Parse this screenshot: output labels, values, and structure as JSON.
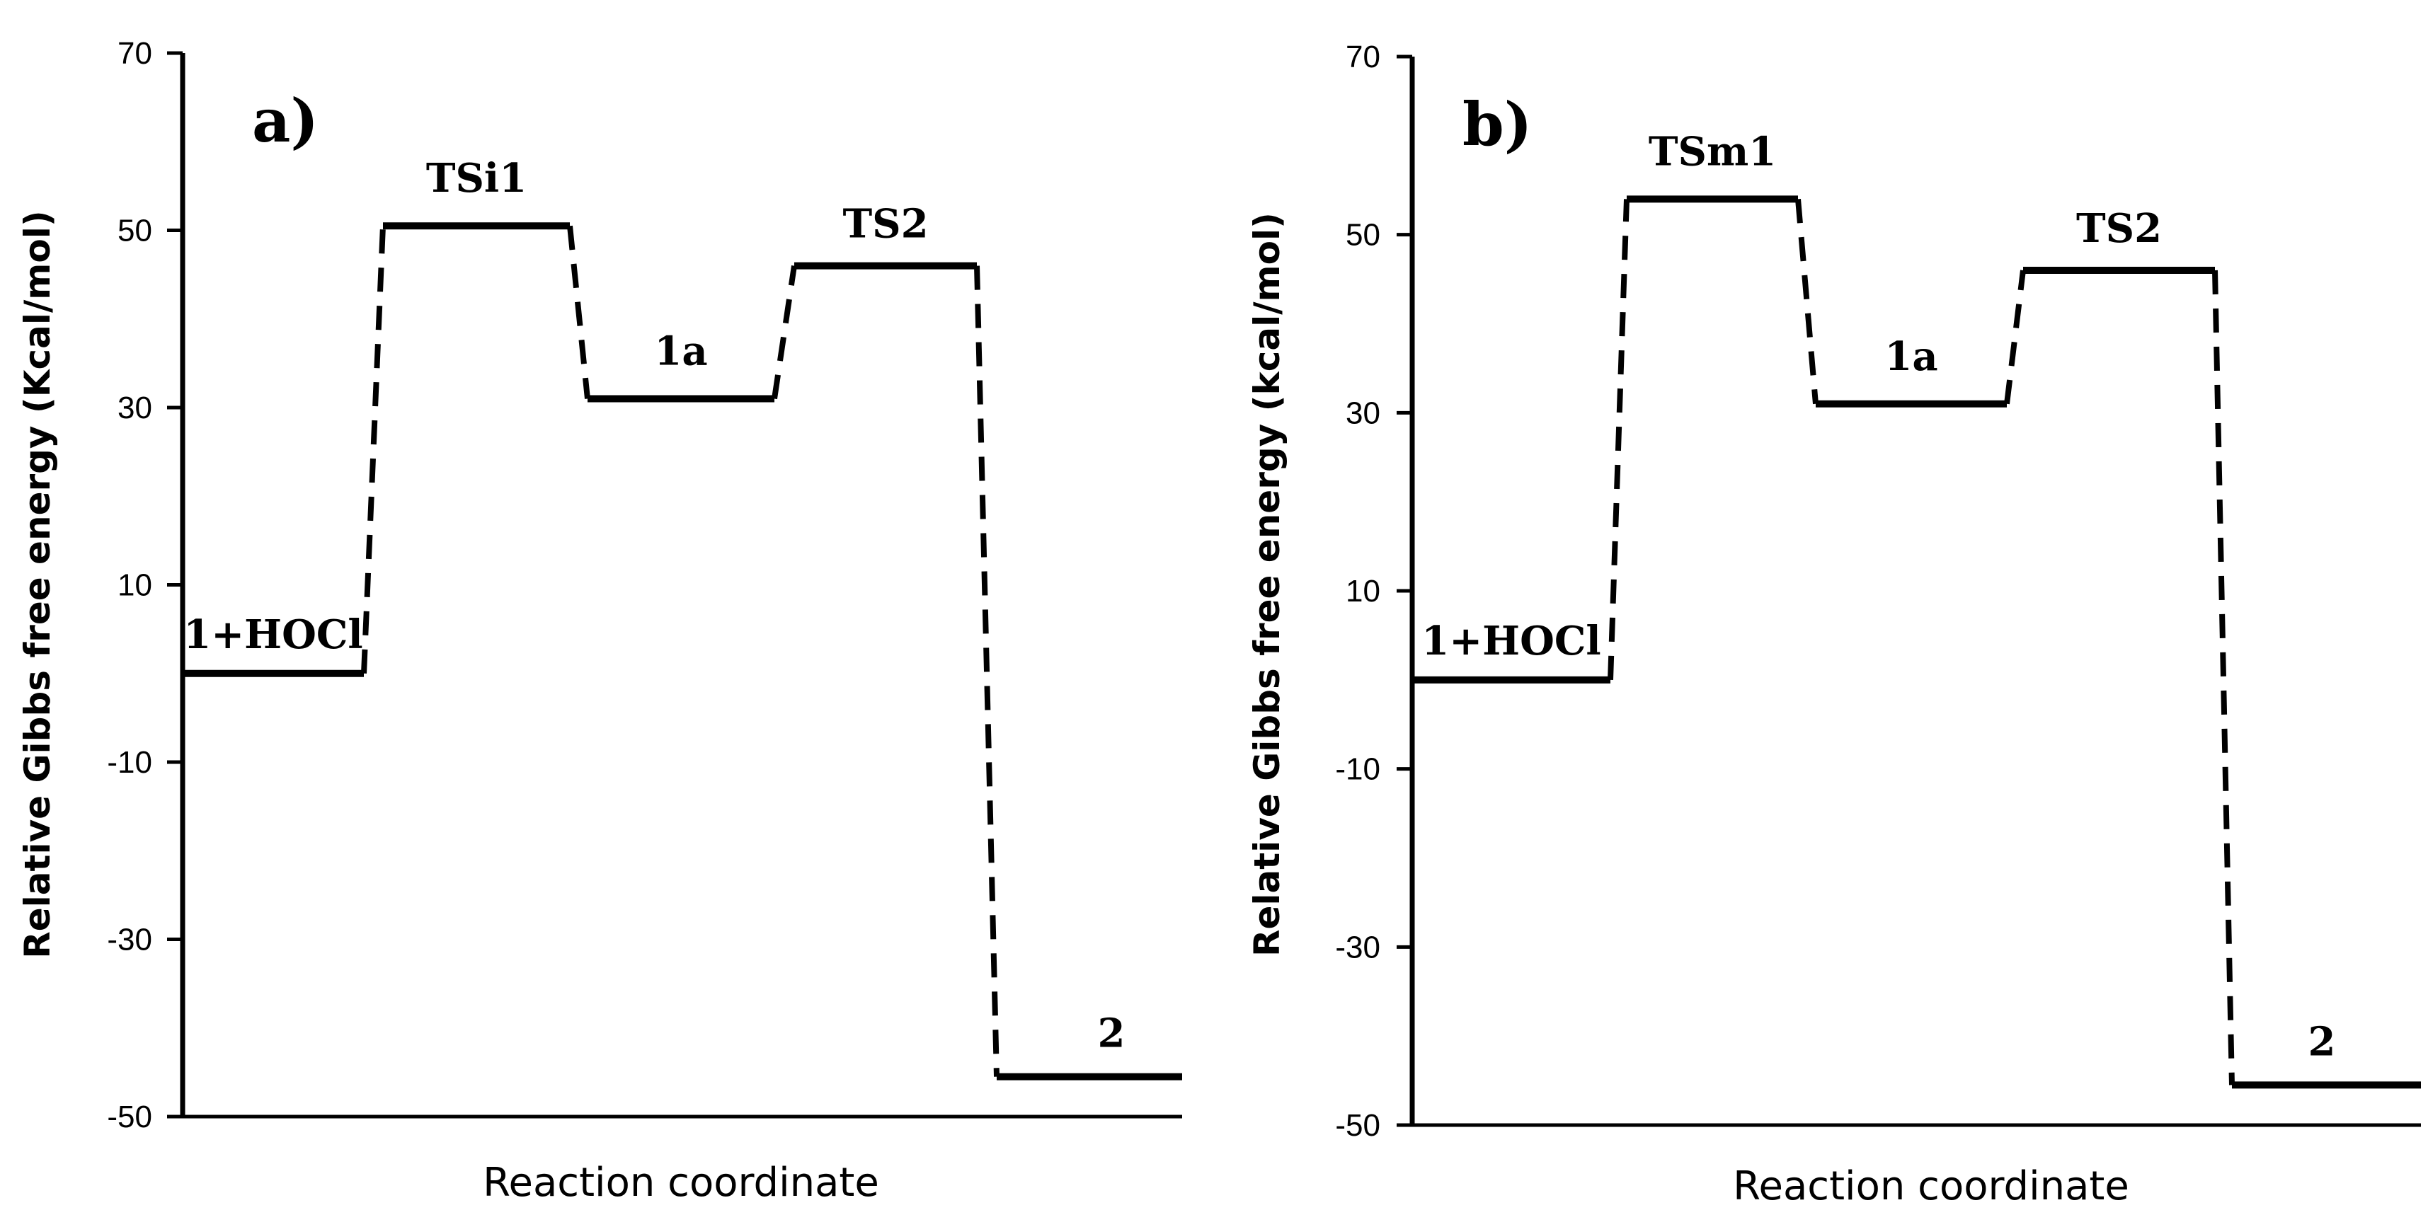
{
  "chart_data": [
    {
      "type": "line",
      "panel_label": "a)",
      "xlabel": "Reaction coordinate",
      "ylabel": "Relative Gibbs free energy (Kcal/mol)",
      "ylim": [
        -50,
        70
      ],
      "yticks": [
        70,
        50,
        30,
        10,
        -10,
        -30,
        -50
      ],
      "grid": false,
      "categories": [
        "1+HOCl",
        "TSi1",
        "1a",
        "TS2",
        "2"
      ],
      "values": [
        0,
        50.5,
        31,
        46,
        -45.5
      ]
    },
    {
      "type": "line",
      "panel_label": "b)",
      "xlabel": "Reaction coordinate",
      "ylabel": "Relative Gibbs free energy (kcal/mol)",
      "ylim": [
        -50,
        70
      ],
      "yticks": [
        70,
        50,
        30,
        10,
        -10,
        -30,
        -50
      ],
      "grid": false,
      "categories": [
        "1+HOCl",
        "TSm1",
        "1a",
        "TS2",
        "2"
      ],
      "values": [
        0,
        54,
        31,
        46,
        -45.5
      ]
    }
  ]
}
